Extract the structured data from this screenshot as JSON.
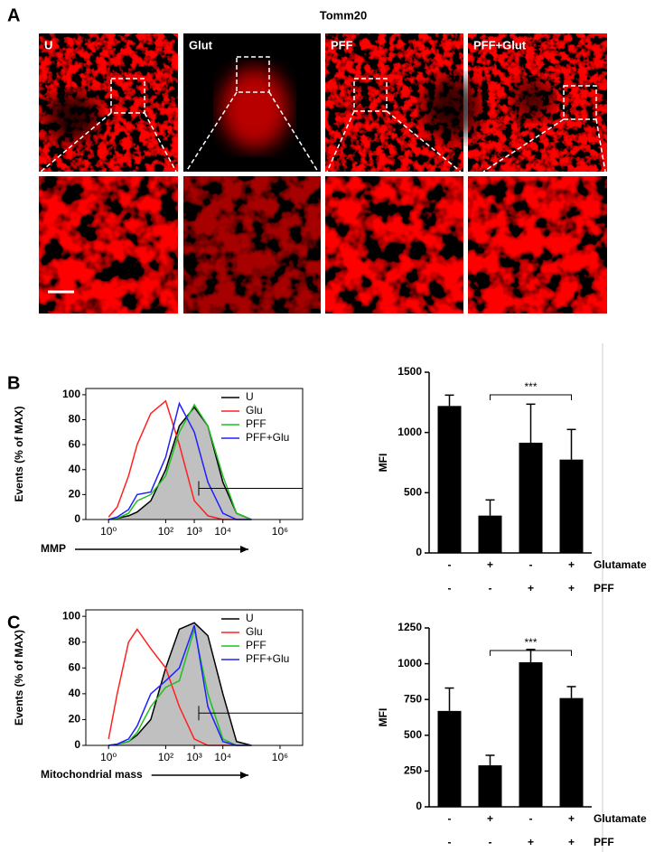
{
  "figure": {
    "panel_a": {
      "label": "A",
      "title": "Tomm20",
      "images": [
        "U",
        "Glut",
        "PFF",
        "PFF+Glut"
      ]
    },
    "panel_b": {
      "label": "B"
    },
    "panel_c": {
      "label": "C"
    }
  },
  "chart_data": [
    {
      "type": "line",
      "xlabel": "MMP",
      "ylabel": "Events (% of MAX)",
      "xscale": "log",
      "x": [
        1,
        2,
        5,
        10,
        30,
        100,
        300,
        1000,
        3000,
        10000,
        30000,
        100000
      ],
      "xlim": [
        0.16,
        6200000
      ],
      "xticks": [
        {
          "value": 1,
          "label": "10⁰"
        },
        {
          "value": 100,
          "label": "10²"
        },
        {
          "value": 1000,
          "label": "10³"
        },
        {
          "value": 10000,
          "label": "10⁴"
        },
        {
          "value": 1000000,
          "label": "10⁶"
        }
      ],
      "ylim": [
        0,
        105
      ],
      "yticks": [
        0,
        20,
        40,
        60,
        80,
        100
      ],
      "series": [
        {
          "name": "U",
          "color": "#000000",
          "fill": "#c0c0c0",
          "values": [
            0,
            1,
            3,
            6,
            15,
            40,
            75,
            90,
            75,
            30,
            5,
            0
          ]
        },
        {
          "name": "Glu",
          "color": "#ff2020",
          "values": [
            2,
            10,
            35,
            60,
            85,
            95,
            60,
            15,
            3,
            0,
            0,
            0
          ]
        },
        {
          "name": "PFF",
          "color": "#20c020",
          "values": [
            0,
            1,
            5,
            15,
            20,
            35,
            70,
            92,
            75,
            35,
            5,
            0
          ]
        },
        {
          "name": "PFF+Glu",
          "color": "#2020ff",
          "values": [
            0,
            2,
            8,
            20,
            22,
            50,
            93,
            70,
            30,
            5,
            0,
            0
          ]
        }
      ]
    },
    {
      "type": "bar",
      "ylabel": "MFI",
      "annotation": "***",
      "color": "#000000",
      "values": [
        1220,
        310,
        915,
        775
      ],
      "errors": [
        90,
        130,
        320,
        250
      ],
      "ylim": [
        0,
        1500
      ],
      "yticks": [
        0,
        500,
        1000,
        1500
      ],
      "conditions": [
        {
          "name": "Glutamate",
          "values": [
            "-",
            "+",
            "-",
            "+"
          ]
        },
        {
          "name": "PFF",
          "values": [
            "-",
            "-",
            "+",
            "+"
          ]
        }
      ]
    },
    {
      "type": "line",
      "xlabel": "Mitochondrial mass",
      "ylabel": "Events (% of MAX)",
      "xscale": "log",
      "x": [
        1,
        2,
        5,
        10,
        30,
        100,
        300,
        1000,
        3000,
        10000,
        30000,
        100000
      ],
      "xlim": [
        0.16,
        6200000
      ],
      "xticks": [
        {
          "value": 1,
          "label": "10⁰"
        },
        {
          "value": 100,
          "label": "10²"
        },
        {
          "value": 1000,
          "label": "10³"
        },
        {
          "value": 10000,
          "label": "10⁴"
        },
        {
          "value": 1000000,
          "label": "10⁶"
        }
      ],
      "ylim": [
        0,
        105
      ],
      "yticks": [
        0,
        20,
        40,
        60,
        80,
        100
      ],
      "series": [
        {
          "name": "U",
          "color": "#000000",
          "fill": "#c0c0c0",
          "values": [
            0,
            1,
            3,
            8,
            20,
            60,
            90,
            95,
            85,
            40,
            3,
            0
          ]
        },
        {
          "name": "Glu",
          "color": "#ff2020",
          "values": [
            5,
            40,
            80,
            90,
            75,
            60,
            30,
            5,
            0,
            0,
            0,
            0
          ]
        },
        {
          "name": "PFF",
          "color": "#20c020",
          "values": [
            0,
            1,
            3,
            10,
            30,
            45,
            50,
            90,
            40,
            5,
            0,
            0
          ]
        },
        {
          "name": "PFF+Glu",
          "color": "#2020ff",
          "values": [
            0,
            1,
            5,
            15,
            40,
            50,
            60,
            93,
            30,
            3,
            0,
            0
          ]
        }
      ]
    },
    {
      "type": "bar",
      "ylabel": "MFI",
      "annotation": "***",
      "color": "#000000",
      "values": [
        670,
        290,
        1010,
        760
      ],
      "errors": [
        160,
        70,
        90,
        80
      ],
      "ylim": [
        0,
        1250
      ],
      "yticks": [
        0,
        250,
        500,
        750,
        1000,
        1250
      ],
      "conditions": [
        {
          "name": "Glutamate",
          "values": [
            "-",
            "+",
            "-",
            "+"
          ]
        },
        {
          "name": "PFF",
          "values": [
            "-",
            "-",
            "+",
            "+"
          ]
        }
      ]
    }
  ]
}
